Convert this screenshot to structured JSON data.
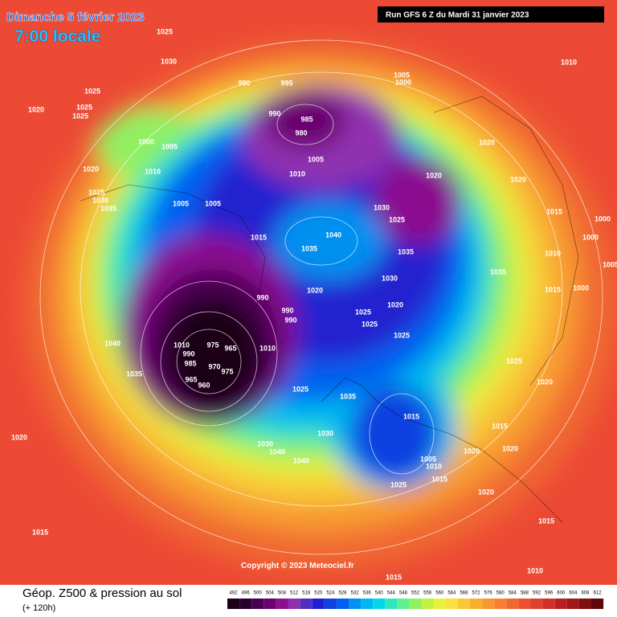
{
  "header": {
    "date": "Dimanche 5 février 2023",
    "time": "7:00 locale",
    "run": "Run GFS 6 Z du Mardi 31 janvier 2023"
  },
  "copyright": "Copyright © 2023 Meteociel.fr",
  "footer": {
    "title": "Géop. Z500 & pression au sol",
    "lead": "(+ 120h)"
  },
  "colorbar": {
    "values": [
      492,
      496,
      500,
      504,
      508,
      512,
      516,
      520,
      524,
      528,
      532,
      536,
      540,
      544,
      548,
      552,
      556,
      560,
      564,
      568,
      572,
      576,
      580,
      584,
      588,
      592,
      596,
      600,
      604,
      608,
      612
    ],
    "colors": [
      "#1a0018",
      "#2a0030",
      "#4a0050",
      "#6a0070",
      "#8a1090",
      "#9030b0",
      "#5030c0",
      "#2020d0",
      "#1040e0",
      "#0060f0",
      "#0090f0",
      "#00b8f0",
      "#00d8e8",
      "#30e8c0",
      "#60f090",
      "#90f060",
      "#c0f040",
      "#e8f040",
      "#f8e040",
      "#f8c838",
      "#f8b030",
      "#f89830",
      "#f88030",
      "#f06830",
      "#e85030",
      "#e04030",
      "#d03028",
      "#b82020",
      "#a01818",
      "#801010",
      "#600808"
    ]
  },
  "isobar_labels": [
    1025,
    1030,
    1025,
    1025,
    1025,
    1020,
    1000,
    1005,
    1020,
    1010,
    1025,
    1030,
    1035,
    1005,
    1005,
    990,
    995,
    990,
    985,
    980,
    1005,
    1000,
    1005,
    1010,
    1020,
    1020,
    1020,
    1010,
    1030,
    1025,
    1040,
    1035,
    1035,
    1015,
    1015,
    1000,
    1000,
    1010,
    1005,
    1035,
    1030,
    1020,
    990,
    1015,
    1000,
    990,
    990,
    1025,
    1025,
    1020,
    1025,
    1040,
    1010,
    975,
    965,
    1010,
    990,
    985,
    970,
    975,
    1035,
    965,
    960,
    1025,
    1020,
    1025,
    1035,
    1015,
    1015,
    1030,
    1020,
    1030,
    1040,
    1040,
    1020,
    1020,
    1005,
    1010,
    1015,
    1025,
    1020,
    1015,
    1015,
    1010,
    1015
  ]
}
